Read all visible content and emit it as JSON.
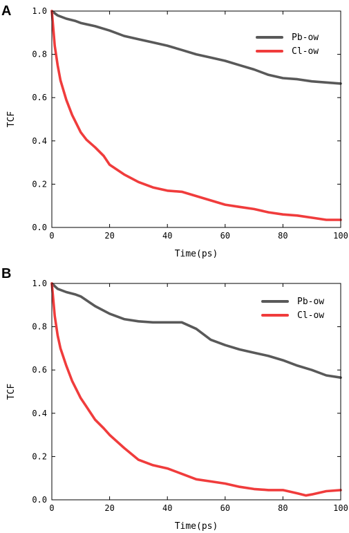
{
  "chart_data": [
    {
      "panel": "A",
      "type": "line",
      "xlabel": "Time(ps)",
      "ylabel": "TCF",
      "xlim": [
        0,
        100
      ],
      "ylim": [
        0,
        1
      ],
      "xticks": [
        "0",
        "20",
        "40",
        "60",
        "80",
        "100"
      ],
      "yticks": [
        "0.0",
        "0.2",
        "0.4",
        "0.6",
        "0.8",
        "1.0"
      ],
      "legend_position": "top-right",
      "series": [
        {
          "name": "Pb-ow",
          "color": "#595959",
          "x": [
            0,
            2,
            5,
            8,
            10,
            15,
            20,
            25,
            30,
            35,
            40,
            45,
            50,
            55,
            60,
            65,
            70,
            75,
            80,
            85,
            90,
            95,
            100
          ],
          "y": [
            1.0,
            0.98,
            0.965,
            0.955,
            0.945,
            0.93,
            0.91,
            0.885,
            0.87,
            0.855,
            0.84,
            0.82,
            0.8,
            0.785,
            0.77,
            0.75,
            0.73,
            0.705,
            0.69,
            0.685,
            0.675,
            0.67,
            0.665
          ]
        },
        {
          "name": "Cl-ow",
          "color": "#f03c3c",
          "x": [
            0,
            1,
            2,
            3,
            5,
            7,
            10,
            12,
            15,
            18,
            20,
            25,
            30,
            35,
            40,
            45,
            50,
            55,
            60,
            65,
            70,
            75,
            80,
            85,
            90,
            95,
            100
          ],
          "y": [
            1.0,
            0.84,
            0.75,
            0.68,
            0.59,
            0.52,
            0.44,
            0.405,
            0.37,
            0.33,
            0.29,
            0.245,
            0.21,
            0.185,
            0.17,
            0.165,
            0.145,
            0.125,
            0.105,
            0.095,
            0.085,
            0.07,
            0.06,
            0.055,
            0.045,
            0.035,
            0.035
          ]
        }
      ]
    },
    {
      "panel": "B",
      "type": "line",
      "xlabel": "Time(ps)",
      "ylabel": "TCF",
      "xlim": [
        0,
        100
      ],
      "ylim": [
        0,
        1
      ],
      "xticks": [
        "0",
        "20",
        "40",
        "60",
        "80",
        "100"
      ],
      "yticks": [
        "0.0",
        "0.2",
        "0.4",
        "0.6",
        "0.8",
        "1.0"
      ],
      "legend_position": "top-right",
      "series": [
        {
          "name": "Pb-ow",
          "color": "#595959",
          "x": [
            0,
            2,
            5,
            8,
            10,
            15,
            20,
            25,
            30,
            35,
            40,
            45,
            50,
            55,
            60,
            65,
            70,
            75,
            80,
            85,
            90,
            95,
            100
          ],
          "y": [
            1.0,
            0.975,
            0.96,
            0.95,
            0.94,
            0.895,
            0.86,
            0.835,
            0.825,
            0.82,
            0.82,
            0.82,
            0.79,
            0.74,
            0.715,
            0.695,
            0.68,
            0.665,
            0.645,
            0.62,
            0.6,
            0.575,
            0.565
          ]
        },
        {
          "name": "Cl-ow",
          "color": "#f03c3c",
          "x": [
            0,
            1,
            2,
            3,
            5,
            7,
            10,
            12,
            15,
            18,
            20,
            25,
            30,
            35,
            40,
            45,
            50,
            55,
            60,
            65,
            70,
            75,
            80,
            85,
            88,
            90,
            95,
            100
          ],
          "y": [
            1.0,
            0.85,
            0.76,
            0.7,
            0.62,
            0.55,
            0.47,
            0.43,
            0.37,
            0.33,
            0.3,
            0.24,
            0.185,
            0.16,
            0.145,
            0.12,
            0.095,
            0.085,
            0.075,
            0.06,
            0.05,
            0.045,
            0.045,
            0.03,
            0.02,
            0.025,
            0.04,
            0.045
          ]
        }
      ]
    }
  ]
}
